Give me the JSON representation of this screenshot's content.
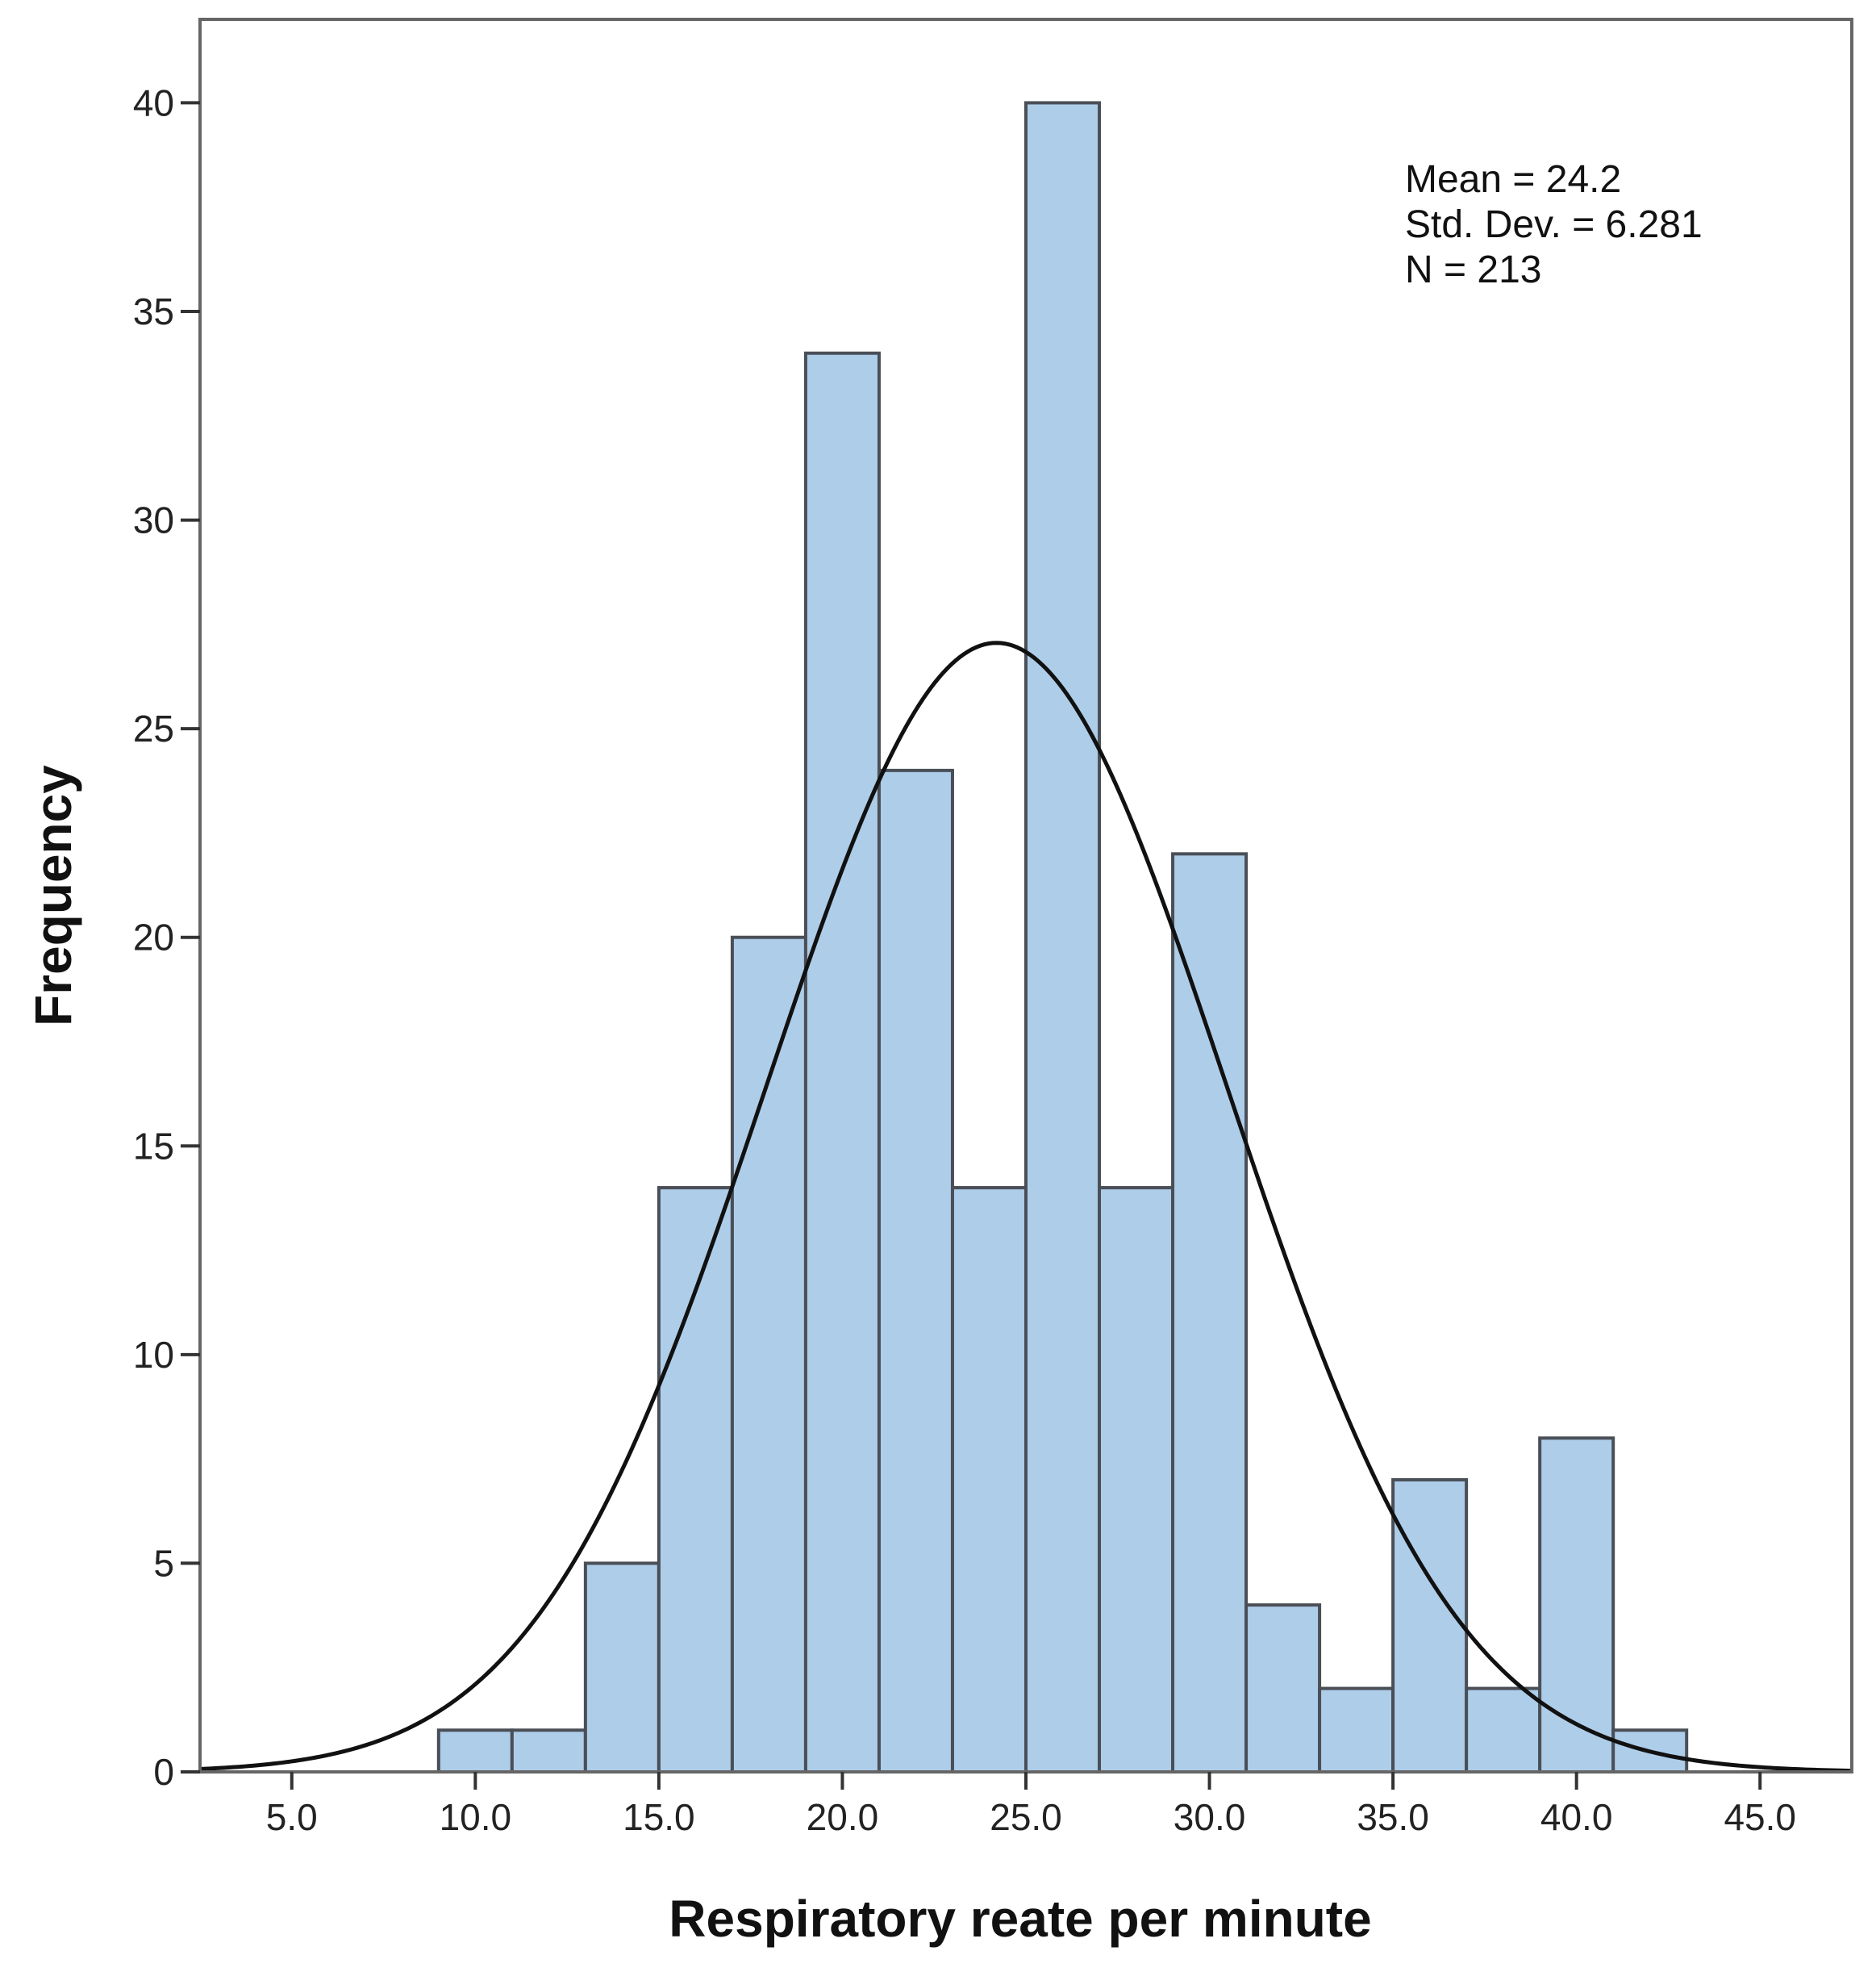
{
  "chart_data": {
    "type": "bar",
    "subtype": "histogram",
    "title": "",
    "xlabel": "Respiratory reate per minute",
    "ylabel": "Frequency",
    "xlim": [
      2.5,
      47.5
    ],
    "ylim": [
      0,
      42
    ],
    "bin_width": 2,
    "bins": [
      {
        "start": 9,
        "end": 11,
        "value": 1
      },
      {
        "start": 11,
        "end": 13,
        "value": 1
      },
      {
        "start": 13,
        "end": 15,
        "value": 5
      },
      {
        "start": 15,
        "end": 17,
        "value": 14
      },
      {
        "start": 17,
        "end": 19,
        "value": 20
      },
      {
        "start": 19,
        "end": 21,
        "value": 34
      },
      {
        "start": 21,
        "end": 23,
        "value": 24
      },
      {
        "start": 23,
        "end": 25,
        "value": 14
      },
      {
        "start": 25,
        "end": 27,
        "value": 40
      },
      {
        "start": 27,
        "end": 29,
        "value": 14
      },
      {
        "start": 29,
        "end": 31,
        "value": 22
      },
      {
        "start": 31,
        "end": 33,
        "value": 4
      },
      {
        "start": 33,
        "end": 35,
        "value": 2
      },
      {
        "start": 35,
        "end": 37,
        "value": 7
      },
      {
        "start": 37,
        "end": 39,
        "value": 2
      },
      {
        "start": 39,
        "end": 41,
        "value": 8
      },
      {
        "start": 41,
        "end": 43,
        "value": 1
      }
    ],
    "x_ticks": [
      5,
      10,
      15,
      20,
      25,
      30,
      35,
      40,
      45
    ],
    "x_tick_labels": [
      "5.0",
      "10.0",
      "15.0",
      "20.0",
      "25.0",
      "30.0",
      "35.0",
      "40.0",
      "45.0"
    ],
    "y_ticks": [
      0,
      5,
      10,
      15,
      20,
      25,
      30,
      35,
      40
    ],
    "y_tick_labels": [
      "0",
      "5",
      "10",
      "15",
      "20",
      "25",
      "30",
      "35",
      "40"
    ],
    "normal_curve": {
      "mean": 24.2,
      "sd": 6.281,
      "n": 213
    },
    "stats_lines": [
      "Mean = 24.2",
      "Std. Dev. = 6.281",
      "N = 213"
    ],
    "colors": {
      "bar_fill": "#aecde9",
      "bar_stroke": "#4a4f57",
      "curve": "#111111",
      "frame": "#666666"
    }
  }
}
